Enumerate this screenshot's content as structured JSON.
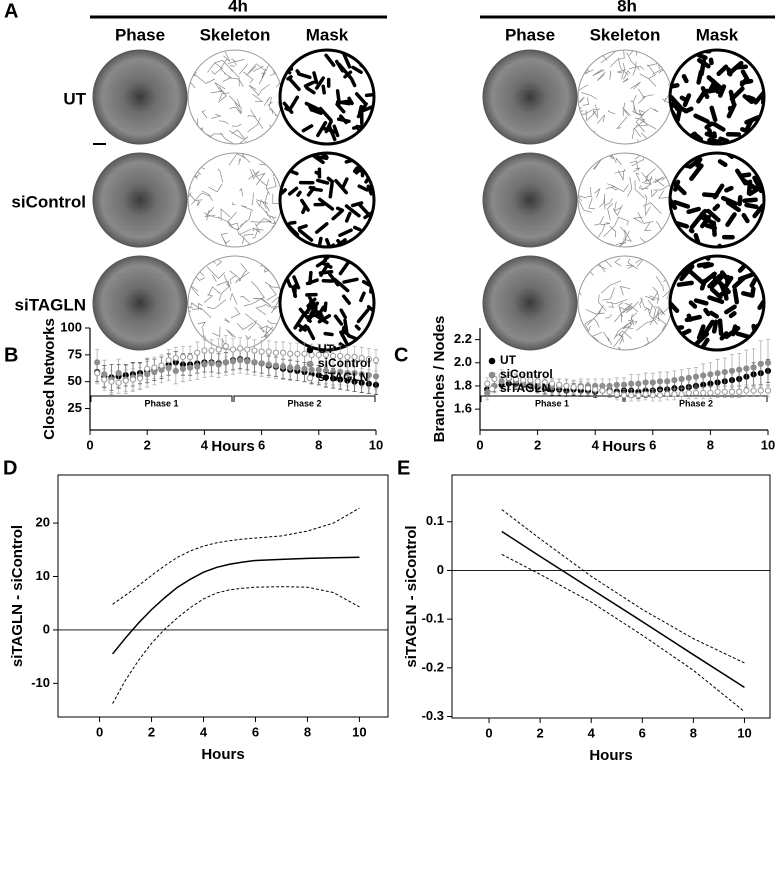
{
  "figure": {
    "panel": "A",
    "groups": [
      "4h",
      "8h"
    ],
    "columns": [
      "Phase",
      "Skeleton",
      "Mask"
    ],
    "rows": [
      "UT",
      "siControl",
      "siTAGLN"
    ]
  },
  "chart_data": [
    {
      "type": "scatter",
      "panel": "B",
      "x_label": "Hours",
      "y_label": "Closed Networks",
      "xlim": [
        0,
        10
      ],
      "ylim": [
        5,
        100
      ],
      "xticks": [
        0,
        2,
        4,
        6,
        8,
        10
      ],
      "yticks": [
        25,
        50,
        75,
        100
      ],
      "frame": "axes",
      "legend": "upper right",
      "phases": [
        {
          "label": "Phase 1",
          "range": [
            0,
            5
          ]
        },
        {
          "label": "Phase 2",
          "range": [
            5,
            10
          ]
        }
      ],
      "x": [
        0.25,
        0.5,
        0.75,
        1,
        1.25,
        1.5,
        1.75,
        2,
        2.25,
        2.5,
        2.75,
        3,
        3.25,
        3.5,
        3.75,
        4,
        4.25,
        4.5,
        4.75,
        5,
        5.25,
        5.5,
        5.75,
        6,
        6.25,
        6.5,
        6.75,
        7,
        7.25,
        7.5,
        7.75,
        8,
        8.25,
        8.5,
        8.75,
        9,
        9.25,
        9.5,
        9.75,
        10
      ],
      "series": [
        {
          "name": "UT",
          "color": "#000000",
          "marker": "filled",
          "values": [
            59,
            55,
            54,
            55,
            56,
            57,
            58,
            60,
            61,
            63,
            66,
            68,
            66,
            66,
            67,
            68,
            68,
            67,
            68,
            70,
            71,
            70,
            68,
            67,
            65,
            64,
            62,
            61,
            60,
            59,
            57,
            56,
            54,
            53,
            52,
            51,
            50,
            49,
            48,
            47
          ],
          "errors": [
            9,
            10,
            12,
            11,
            10,
            11,
            10,
            11,
            10,
            10,
            10,
            10,
            10,
            10,
            9,
            9,
            9,
            9,
            9,
            9,
            9,
            9,
            9,
            9,
            9,
            9,
            9,
            9,
            9,
            9,
            9,
            9,
            9,
            9,
            9,
            9,
            9,
            9,
            9,
            9
          ]
        },
        {
          "name": "siControl",
          "color": "#8c8c8c",
          "marker": "filled",
          "values": [
            68,
            57,
            52,
            58,
            52,
            54,
            55,
            57,
            59,
            61,
            63,
            60,
            62,
            63,
            64,
            66,
            67,
            66,
            68,
            69,
            70,
            69,
            68,
            67,
            66,
            65,
            64,
            63,
            63,
            62,
            61,
            61,
            60,
            59,
            59,
            58,
            58,
            57,
            56,
            55
          ],
          "errors": [
            12,
            13,
            14,
            13,
            13,
            13,
            12,
            12,
            12,
            12,
            12,
            12,
            12,
            12,
            12,
            12,
            12,
            12,
            12,
            12,
            12,
            12,
            12,
            12,
            12,
            12,
            12,
            12,
            12,
            12,
            12,
            12,
            12,
            12,
            12,
            12,
            12,
            12,
            12,
            12
          ]
        },
        {
          "name": "siTAGLN",
          "color": "#999999",
          "marker": "open",
          "values": [
            58,
            52,
            50,
            49,
            51,
            52,
            53,
            62,
            63,
            65,
            70,
            72,
            73,
            73,
            77,
            79,
            79,
            80,
            83,
            80,
            81,
            80,
            79,
            78,
            78,
            77,
            77,
            76,
            76,
            76,
            75,
            75,
            75,
            74,
            74,
            73,
            73,
            72,
            71,
            70
          ],
          "errors": [
            10,
            10,
            10,
            10,
            10,
            10,
            10,
            10,
            10,
            10,
            10,
            10,
            10,
            10,
            10,
            10,
            10,
            10,
            10,
            10,
            10,
            10,
            10,
            10,
            10,
            10,
            10,
            10,
            10,
            10,
            10,
            10,
            10,
            10,
            10,
            10,
            10,
            10,
            10,
            10
          ]
        }
      ]
    },
    {
      "type": "scatter",
      "panel": "C",
      "x_label": "Hours",
      "y_label": "Branches / Nodes",
      "xlim": [
        0,
        10
      ],
      "ylim": [
        1.42,
        2.3
      ],
      "xticks": [
        0,
        2,
        4,
        6,
        8,
        10
      ],
      "yticks": [
        1.6,
        1.8,
        {
          "value": 2,
          "label": "2.0"
        },
        2.2
      ],
      "frame": "axes",
      "legend": "upper left",
      "phases": [
        {
          "label": "Phase 1",
          "range": [
            0,
            5
          ]
        },
        {
          "label": "Phase 2",
          "range": [
            5,
            10
          ]
        }
      ],
      "x": [
        0.25,
        0.5,
        0.75,
        1,
        1.25,
        1.5,
        1.75,
        2,
        2.25,
        2.5,
        2.75,
        3,
        3.25,
        3.5,
        3.75,
        4,
        4.25,
        4.5,
        4.75,
        5,
        5.25,
        5.5,
        5.75,
        6,
        6.25,
        6.5,
        6.75,
        7,
        7.25,
        7.5,
        7.75,
        8,
        8.25,
        8.5,
        8.75,
        9,
        9.25,
        9.5,
        9.75,
        10
      ],
      "series": [
        {
          "name": "UT",
          "color": "#000000",
          "marker": "filled",
          "values": [
            1.77,
            1.8,
            1.81,
            1.82,
            1.82,
            1.81,
            1.8,
            1.79,
            1.78,
            1.77,
            1.77,
            1.76,
            1.77,
            1.76,
            1.76,
            1.75,
            1.76,
            1.76,
            1.75,
            1.76,
            1.76,
            1.75,
            1.76,
            1.76,
            1.77,
            1.77,
            1.78,
            1.78,
            1.79,
            1.8,
            1.81,
            1.82,
            1.83,
            1.84,
            1.85,
            1.86,
            1.88,
            1.9,
            1.91,
            1.93
          ],
          "errors": [
            0.05,
            0.05,
            0.05,
            0.05,
            0.05,
            0.05,
            0.05,
            0.05,
            0.05,
            0.05,
            0.05,
            0.05,
            0.05,
            0.05,
            0.05,
            0.05,
            0.05,
            0.05,
            0.05,
            0.05,
            0.06,
            0.06,
            0.06,
            0.06,
            0.06,
            0.06,
            0.06,
            0.06,
            0.06,
            0.06,
            0.07,
            0.07,
            0.08,
            0.08,
            0.08,
            0.09,
            0.09,
            0.1,
            0.1,
            0.1
          ]
        },
        {
          "name": "siControl",
          "color": "#8c8c8c",
          "marker": "filled",
          "values": [
            1.74,
            1.8,
            1.84,
            1.86,
            1.84,
            1.82,
            1.82,
            1.81,
            1.8,
            1.8,
            1.8,
            1.8,
            1.79,
            1.8,
            1.8,
            1.8,
            1.8,
            1.8,
            1.81,
            1.81,
            1.82,
            1.82,
            1.83,
            1.83,
            1.84,
            1.84,
            1.85,
            1.86,
            1.87,
            1.88,
            1.89,
            1.9,
            1.91,
            1.92,
            1.93,
            1.94,
            1.95,
            1.96,
            1.99,
            2.0
          ],
          "errors": [
            0.06,
            0.06,
            0.06,
            0.06,
            0.06,
            0.06,
            0.06,
            0.06,
            0.06,
            0.06,
            0.06,
            0.06,
            0.06,
            0.06,
            0.06,
            0.06,
            0.06,
            0.06,
            0.06,
            0.06,
            0.08,
            0.08,
            0.08,
            0.08,
            0.08,
            0.08,
            0.08,
            0.08,
            0.08,
            0.08,
            0.1,
            0.1,
            0.12,
            0.12,
            0.14,
            0.14,
            0.16,
            0.16,
            0.2,
            0.2
          ]
        },
        {
          "name": "siTAGLN",
          "color": "#999999",
          "marker": "open",
          "values": [
            1.82,
            1.86,
            1.89,
            1.87,
            1.86,
            1.85,
            1.85,
            1.84,
            1.83,
            1.82,
            1.81,
            1.8,
            1.79,
            1.79,
            1.78,
            1.77,
            1.76,
            1.75,
            1.73,
            1.72,
            1.72,
            1.72,
            1.73,
            1.72,
            1.72,
            1.73,
            1.73,
            1.73,
            1.74,
            1.74,
            1.74,
            1.74,
            1.75,
            1.75,
            1.75,
            1.75,
            1.76,
            1.76,
            1.76,
            1.76
          ],
          "errors": [
            0.05,
            0.05,
            0.05,
            0.05,
            0.05,
            0.05,
            0.05,
            0.05,
            0.05,
            0.05,
            0.05,
            0.05,
            0.05,
            0.05,
            0.05,
            0.05,
            0.05,
            0.05,
            0.05,
            0.05,
            0.05,
            0.05,
            0.05,
            0.05,
            0.05,
            0.05,
            0.05,
            0.05,
            0.05,
            0.05,
            0.05,
            0.05,
            0.05,
            0.05,
            0.05,
            0.05,
            0.05,
            0.05,
            0.05,
            0.05
          ]
        }
      ]
    },
    {
      "type": "line",
      "panel": "D",
      "x_label": "Hours",
      "y_label": "siTAGLN - siControl",
      "xlim": [
        -1.6,
        11.1
      ],
      "ylim": [
        -16.3,
        29
      ],
      "xticks": [
        0,
        2,
        4,
        6,
        8,
        10
      ],
      "yticks": [
        -10,
        0,
        10,
        20
      ],
      "frame": "box",
      "reference_line": 0,
      "x": [
        0.5,
        1,
        1.5,
        2,
        2.5,
        3,
        3.5,
        4,
        4.5,
        5,
        5.5,
        6,
        7,
        8,
        9,
        10
      ],
      "series": [
        {
          "style": "solid",
          "color": "#000000",
          "values": [
            -4.5,
            -1.5,
            1.3,
            3.8,
            6,
            8,
            9.5,
            10.8,
            11.7,
            12.3,
            12.7,
            13,
            13.2,
            13.4,
            13.5,
            13.6
          ]
        },
        {
          "style": "dashed",
          "color": "#000000",
          "values": [
            4.8,
            6.5,
            8.3,
            10.2,
            12,
            13.6,
            14.8,
            15.7,
            16.3,
            16.7,
            17,
            17.2,
            17.6,
            18.5,
            20,
            22.8
          ]
        },
        {
          "style": "dashed",
          "color": "#000000",
          "values": [
            -13.8,
            -9.4,
            -5.7,
            -2.5,
            0.1,
            2.3,
            4.2,
            5.8,
            6.9,
            7.5,
            7.8,
            8,
            8.1,
            8,
            7,
            4.3
          ]
        }
      ]
    },
    {
      "type": "line",
      "panel": "E",
      "x_label": "Hours",
      "y_label": "siTAGLN - siControl",
      "xlim": [
        -1.45,
        11
      ],
      "ylim": [
        -0.303,
        0.196
      ],
      "xticks": [
        0,
        2,
        4,
        6,
        8,
        10
      ],
      "yticks": [
        0.1,
        0,
        -0.1,
        -0.2,
        -0.3
      ],
      "frame": "box",
      "reference_line": 0,
      "x": [
        0.5,
        2,
        4,
        6,
        8,
        10
      ],
      "series": [
        {
          "style": "solid",
          "color": "#000000",
          "values": [
            0.08,
            0.029,
            -0.038,
            -0.105,
            -0.173,
            -0.24
          ]
        },
        {
          "style": "dashed",
          "color": "#000000",
          "values": [
            0.125,
            0.065,
            -0.012,
            -0.08,
            -0.14,
            -0.19
          ]
        },
        {
          "style": "dashed",
          "color": "#000000",
          "values": [
            0.033,
            -0.008,
            -0.065,
            -0.133,
            -0.205,
            -0.29
          ]
        }
      ]
    }
  ]
}
